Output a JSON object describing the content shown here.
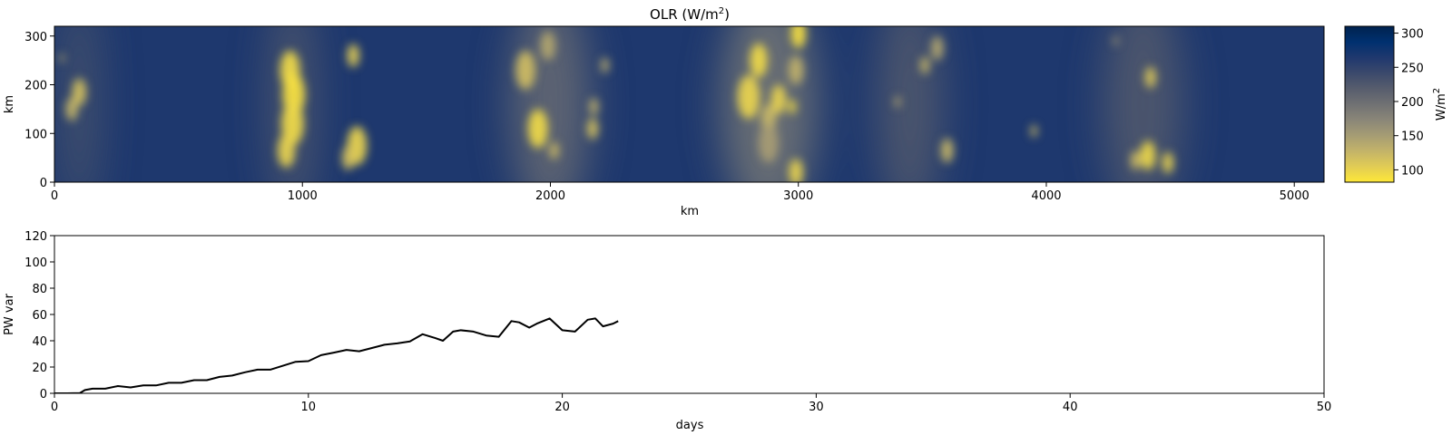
{
  "chart_data": [
    {
      "type": "heatmap",
      "title": "OLR (W/m",
      "title_superscript": "2",
      "title_suffix": ")",
      "xlabel": "km",
      "ylabel": "km",
      "xlim": [
        0,
        5120
      ],
      "ylim": [
        0,
        320
      ],
      "xticks": [
        "0",
        "1000",
        "2000",
        "3000",
        "4000",
        "5000"
      ],
      "yticks": [
        "0",
        "100",
        "200",
        "300"
      ],
      "colormap": "cividis_r",
      "colorbar": {
        "label": "W/m",
        "label_superscript": "2",
        "range": [
          82,
          310
        ],
        "ticks": [
          "100",
          "150",
          "200",
          "250",
          "300"
        ],
        "colors": [
          "#fee838",
          "#e1cc55",
          "#c3b369",
          "#a59c74",
          "#8a8678",
          "#707173",
          "#575d6d",
          "#3b496c",
          "#1f386e",
          "#00306f",
          "#00224e"
        ]
      },
      "background_olr": 265,
      "convective_cells": [
        {
          "x": 30,
          "y": 255,
          "r": 9,
          "olr": 130
        },
        {
          "x": 100,
          "y": 185,
          "r": 28,
          "olr": 115
        },
        {
          "x": 70,
          "y": 150,
          "r": 24,
          "olr": 125
        },
        {
          "x": 950,
          "y": 230,
          "r": 40,
          "olr": 95
        },
        {
          "x": 965,
          "y": 180,
          "r": 45,
          "olr": 90
        },
        {
          "x": 960,
          "y": 120,
          "r": 45,
          "olr": 95
        },
        {
          "x": 935,
          "y": 65,
          "r": 35,
          "olr": 100
        },
        {
          "x": 1205,
          "y": 260,
          "r": 24,
          "olr": 105
        },
        {
          "x": 1220,
          "y": 75,
          "r": 40,
          "olr": 100
        },
        {
          "x": 1185,
          "y": 50,
          "r": 25,
          "olr": 115
        },
        {
          "x": 1900,
          "y": 230,
          "r": 40,
          "olr": 120
        },
        {
          "x": 1990,
          "y": 280,
          "r": 30,
          "olr": 140
        },
        {
          "x": 1950,
          "y": 110,
          "r": 40,
          "olr": 95
        },
        {
          "x": 2015,
          "y": 65,
          "r": 18,
          "olr": 120
        },
        {
          "x": 2170,
          "y": 110,
          "r": 22,
          "olr": 115
        },
        {
          "x": 2175,
          "y": 155,
          "r": 18,
          "olr": 130
        },
        {
          "x": 2220,
          "y": 240,
          "r": 16,
          "olr": 135
        },
        {
          "x": 2800,
          "y": 175,
          "r": 45,
          "olr": 100
        },
        {
          "x": 2840,
          "y": 250,
          "r": 35,
          "olr": 95
        },
        {
          "x": 2880,
          "y": 130,
          "r": 30,
          "olr": 125
        },
        {
          "x": 2920,
          "y": 170,
          "r": 30,
          "olr": 100
        },
        {
          "x": 2975,
          "y": 155,
          "r": 15,
          "olr": 90
        },
        {
          "x": 3000,
          "y": 305,
          "r": 30,
          "olr": 90
        },
        {
          "x": 2990,
          "y": 230,
          "r": 30,
          "olr": 130
        },
        {
          "x": 2990,
          "y": 20,
          "r": 28,
          "olr": 100
        },
        {
          "x": 2880,
          "y": 80,
          "r": 40,
          "olr": 150
        },
        {
          "x": 3560,
          "y": 275,
          "r": 25,
          "olr": 140
        },
        {
          "x": 3510,
          "y": 240,
          "r": 18,
          "olr": 125
        },
        {
          "x": 3600,
          "y": 65,
          "r": 25,
          "olr": 125
        },
        {
          "x": 3400,
          "y": 165,
          "r": 12,
          "olr": 140
        },
        {
          "x": 3950,
          "y": 105,
          "r": 13,
          "olr": 120
        },
        {
          "x": 4420,
          "y": 215,
          "r": 22,
          "olr": 110
        },
        {
          "x": 4410,
          "y": 55,
          "r": 30,
          "olr": 95
        },
        {
          "x": 4490,
          "y": 40,
          "r": 22,
          "olr": 100
        },
        {
          "x": 4360,
          "y": 45,
          "r": 20,
          "olr": 120
        },
        {
          "x": 4280,
          "y": 290,
          "r": 10,
          "olr": 150
        }
      ],
      "convective_bands": [
        {
          "x": 2000,
          "width": 320,
          "olr": 195
        },
        {
          "x": 2880,
          "width": 380,
          "olr": 180
        },
        {
          "x": 3450,
          "width": 260,
          "olr": 215
        },
        {
          "x": 4390,
          "width": 320,
          "olr": 215
        },
        {
          "x": 960,
          "width": 180,
          "olr": 215
        },
        {
          "x": 100,
          "width": 160,
          "olr": 225
        }
      ]
    },
    {
      "type": "line",
      "xlabel": "days",
      "ylabel": "PW var",
      "xlim": [
        0,
        50
      ],
      "ylim": [
        0,
        120
      ],
      "xticks": [
        "0",
        "10",
        "20",
        "30",
        "40",
        "50"
      ],
      "yticks": [
        "0",
        "20",
        "40",
        "60",
        "80",
        "100",
        "120"
      ],
      "color": "#000000",
      "series": [
        {
          "x": [
            0,
            0.5,
            1.0,
            1.2,
            1.5,
            2.0,
            2.5,
            3.0,
            3.5,
            4.0,
            4.5,
            5.0,
            5.5,
            6.0,
            6.5,
            7.0,
            7.5,
            8.0,
            8.5,
            9.0,
            9.5,
            10.0,
            10.5,
            11.0,
            11.5,
            12.0,
            12.5,
            13.0,
            13.5,
            14.0,
            14.5,
            15.0,
            15.3,
            15.7,
            16.0,
            16.5,
            17.0,
            17.5,
            18.0,
            18.3,
            18.7,
            19.0,
            19.5,
            20.0,
            20.5,
            21.0,
            21.3,
            21.6,
            22.0,
            22.2
          ],
          "y": [
            0,
            0,
            0.2,
            2.5,
            3.5,
            3.5,
            5.5,
            4.5,
            6.0,
            6.0,
            8.0,
            8.0,
            10.0,
            10.0,
            12.5,
            13.5,
            16.0,
            18.0,
            18.0,
            21.0,
            24.0,
            24.5,
            29.0,
            31.0,
            33.0,
            32.0,
            34.5,
            37.0,
            38.0,
            39.5,
            45.0,
            42.0,
            40.0,
            47.0,
            48.0,
            47.0,
            44.0,
            43.0,
            55.0,
            54.0,
            50.0,
            53.0,
            57.0,
            48.0,
            47.0,
            56.0,
            57.0,
            51.0,
            53.0,
            55.0
          ]
        }
      ]
    }
  ]
}
